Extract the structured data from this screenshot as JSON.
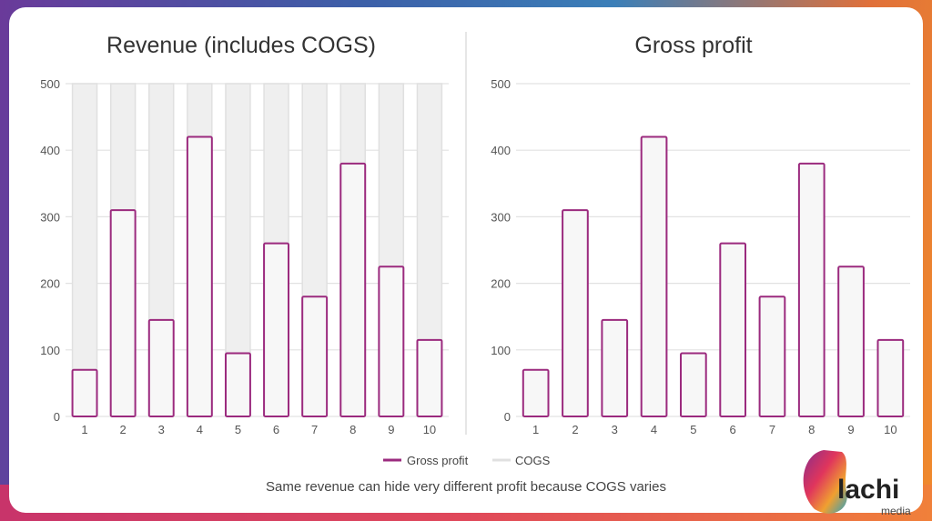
{
  "chart_data": [
    {
      "type": "bar",
      "stacked": true,
      "title": "Revenue (includes COGS)",
      "categories": [
        "1",
        "2",
        "3",
        "4",
        "5",
        "6",
        "7",
        "8",
        "9",
        "10"
      ],
      "series": [
        {
          "name": "Gross profit",
          "values": [
            70,
            310,
            145,
            420,
            95,
            260,
            180,
            380,
            225,
            115
          ]
        },
        {
          "name": "COGS",
          "values": [
            430,
            190,
            355,
            80,
            405,
            240,
            320,
            120,
            275,
            385
          ]
        }
      ],
      "ylim": [
        0,
        500
      ],
      "yticks": [
        0,
        100,
        200,
        300,
        400,
        500
      ],
      "grid": true
    },
    {
      "type": "bar",
      "title": "Gross profit",
      "categories": [
        "1",
        "2",
        "3",
        "4",
        "5",
        "6",
        "7",
        "8",
        "9",
        "10"
      ],
      "series": [
        {
          "name": "Gross profit",
          "values": [
            70,
            310,
            145,
            420,
            95,
            260,
            180,
            380,
            225,
            115
          ]
        }
      ],
      "ylim": [
        0,
        500
      ],
      "yticks": [
        0,
        100,
        200,
        300,
        400,
        500
      ],
      "grid": true
    }
  ],
  "legend": {
    "position": "bottom",
    "items": [
      {
        "label": "Gross profit",
        "color": "#9b2a7e"
      },
      {
        "label": "COGS",
        "color": "#e4e4e4"
      }
    ]
  },
  "caption": "Same revenue can hide very different profit because COGS varies",
  "colors": {
    "gross_profit_stroke": "#9b2a7e",
    "bar_fill": "#f7f7f7",
    "cogs_fill": "#efefef"
  },
  "logo": {
    "text": "lachi",
    "subtext": "media"
  }
}
